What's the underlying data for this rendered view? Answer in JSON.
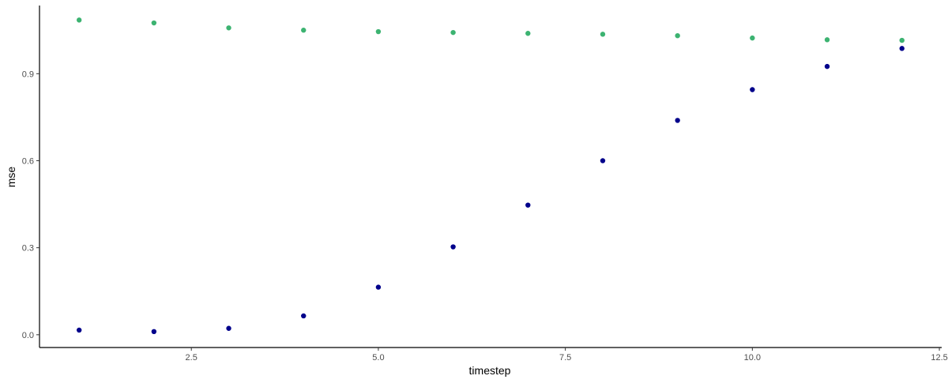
{
  "chart_data": {
    "type": "scatter",
    "title": "",
    "xlabel": "timestep",
    "ylabel": "mse",
    "xlim": [
      0.47,
      12.51
    ],
    "ylim": [
      -0.044,
      1.135
    ],
    "xticks": [
      2.5,
      5.0,
      7.5,
      10.0,
      12.5
    ],
    "xtick_labels": [
      "2.5",
      "5.0",
      "7.5",
      "10.0",
      "12.5"
    ],
    "yticks": [
      0.0,
      0.3,
      0.6,
      0.9
    ],
    "ytick_labels": [
      "0.0",
      "0.3",
      "0.6",
      "0.9"
    ],
    "grid": false,
    "legend": "none",
    "series": [
      {
        "color": "#3CB371",
        "x": [
          1,
          2,
          3,
          4,
          5,
          6,
          7,
          8,
          9,
          10,
          11,
          12
        ],
        "y": [
          1.085,
          1.075,
          1.058,
          1.05,
          1.045,
          1.042,
          1.039,
          1.036,
          1.031,
          1.023,
          1.017,
          1.015
        ]
      },
      {
        "color": "#00008B",
        "x": [
          1,
          2,
          3,
          4,
          5,
          6,
          7,
          8,
          9,
          10,
          11,
          12
        ],
        "y": [
          0.016,
          0.011,
          0.022,
          0.065,
          0.164,
          0.303,
          0.447,
          0.6,
          0.739,
          0.845,
          0.925,
          0.987
        ]
      }
    ]
  }
}
